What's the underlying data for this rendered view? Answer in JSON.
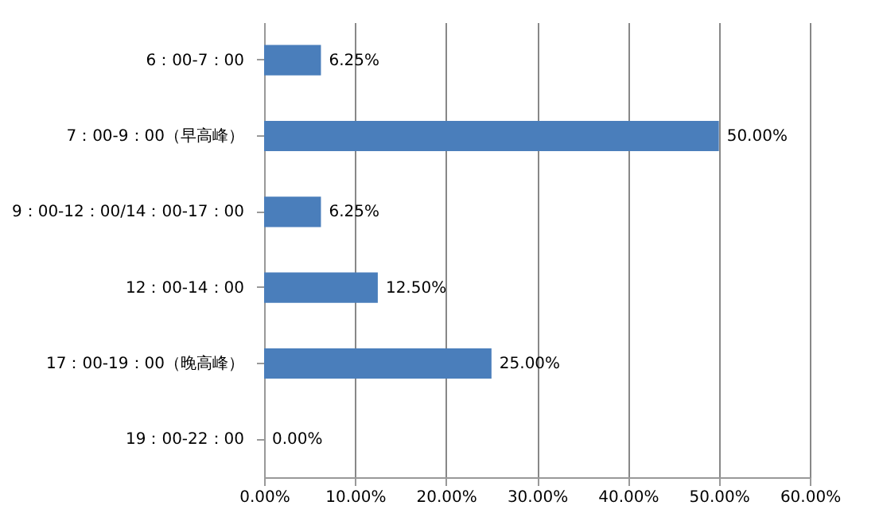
{
  "chart_data": {
    "type": "bar",
    "orientation": "horizontal",
    "categories": [
      "6：00-7：00",
      "7：00-9：00（早高峰）",
      "9：00-12：00/14：00-17：00",
      "12：00-14：00",
      "17：00-19：00（晚高峰）",
      "19：00-22：00"
    ],
    "values": [
      6.25,
      50,
      6.25,
      12.5,
      25,
      0
    ],
    "color": "#4a7ebb",
    "value_labels": [
      "6.25%",
      "50.00%",
      "6.25%",
      "12.50%",
      "25.00%",
      "0.00%"
    ],
    "xlim": [
      0,
      60
    ],
    "xticks": [
      {
        "value": 0,
        "label": "0.00%"
      },
      {
        "value": 10,
        "label": "10.00%"
      },
      {
        "value": 20,
        "label": "20.00%"
      },
      {
        "value": 30,
        "label": "30.00%"
      },
      {
        "value": 40,
        "label": "40.00%"
      },
      {
        "value": 50,
        "label": "50.00%"
      },
      {
        "value": 60,
        "label": "60.00%"
      }
    ],
    "grid": "x"
  }
}
